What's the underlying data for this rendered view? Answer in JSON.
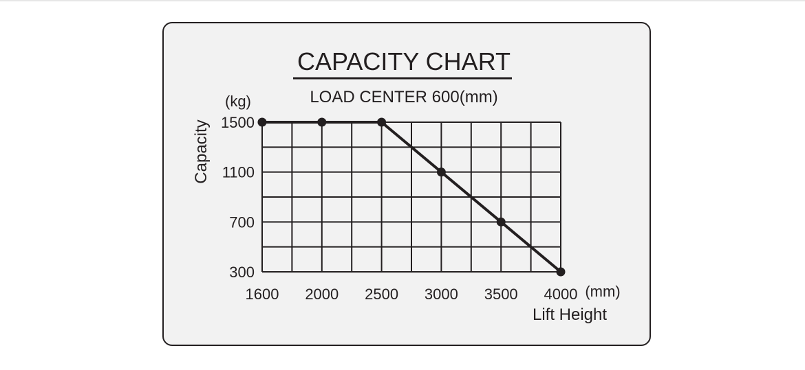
{
  "chart_data": {
    "type": "line",
    "title": "CAPACITY CHART",
    "subtitle": "LOAD CENTER 600(mm)",
    "xlabel": "Lift Height",
    "xunit": "(mm)",
    "ylabel": "Capacity",
    "yunit": "(kg)",
    "x_ticks": [
      "1600",
      "2000",
      "2500",
      "3000",
      "3500",
      "4000"
    ],
    "y_ticks": [
      "1500",
      "1100",
      "700",
      "300"
    ],
    "xlim": [
      1600,
      4000
    ],
    "ylim": [
      300,
      1500
    ],
    "grid": true,
    "series": [
      {
        "points": [
          {
            "x": 1600,
            "y": 1500
          },
          {
            "x": 2000,
            "y": 1500
          },
          {
            "x": 2500,
            "y": 1500
          },
          {
            "x": 3000,
            "y": 1100
          },
          {
            "x": 3500,
            "y": 700
          },
          {
            "x": 4000,
            "y": 300
          }
        ]
      }
    ],
    "colors": {
      "ink": "#231f20",
      "panel": "#f2f2f2"
    }
  }
}
